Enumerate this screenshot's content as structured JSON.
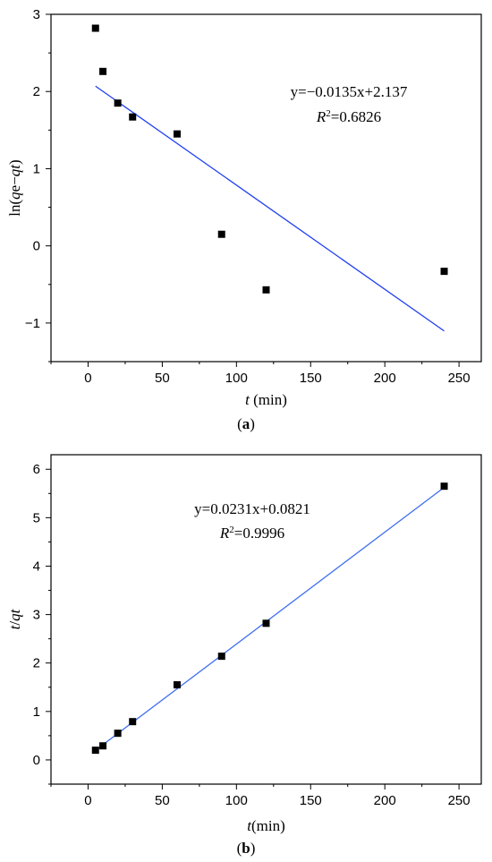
{
  "chart_data": [
    {
      "type": "scatter",
      "panel": "a",
      "xlabel_italic": "t",
      "xlabel_unit": " (min)",
      "ylabel_prefix": "ln(",
      "ylabel_q1": "q",
      "ylabel_e": "e−",
      "ylabel_q2": "qt",
      "ylabel_suffix": ")",
      "xlim": [
        -25,
        265
      ],
      "ylim": [
        -1.5,
        3
      ],
      "xticks": [
        0,
        50,
        100,
        150,
        200,
        250
      ],
      "yticks": [
        -1,
        0,
        1,
        2,
        3
      ],
      "series": [
        {
          "x": [
            5,
            10,
            20,
            30,
            60,
            90,
            120,
            240
          ],
          "y": [
            2.82,
            2.26,
            1.85,
            1.67,
            1.45,
            0.15,
            -0.57,
            -0.33
          ]
        }
      ],
      "fit": {
        "x": [
          5,
          240
        ],
        "slope": -0.0135,
        "intercept": 2.137
      },
      "equation": "y=−0.0135x+2.137",
      "r2_label": "R",
      "r2_sup": "2",
      "r2_value": "=0.6826",
      "caption_letter": "a",
      "marker_color": "#000000",
      "line_color": "#1f3ff0",
      "grid": false
    },
    {
      "type": "scatter",
      "panel": "b",
      "xlabel_italic": "t",
      "xlabel_unit": "(min)",
      "ylabel_prefix": "",
      "ylabel_q1": "t",
      "ylabel_e": "/",
      "ylabel_q2": "qt",
      "ylabel_suffix": "",
      "xlim": [
        -25,
        265
      ],
      "ylim": [
        -0.5,
        6.3
      ],
      "xticks": [
        0,
        50,
        100,
        150,
        200,
        250
      ],
      "yticks": [
        0,
        1,
        2,
        3,
        4,
        5,
        6
      ],
      "series": [
        {
          "x": [
            5,
            10,
            20,
            30,
            60,
            90,
            120,
            240
          ],
          "y": [
            0.2,
            0.29,
            0.55,
            0.79,
            1.55,
            2.14,
            2.82,
            5.65
          ]
        }
      ],
      "fit": {
        "x": [
          5,
          240
        ],
        "slope": 0.0231,
        "intercept": 0.0821
      },
      "equation": "y=0.0231x+0.0821",
      "r2_label": "R",
      "r2_sup": "2",
      "r2_value": "=0.9996",
      "caption_letter": "b",
      "marker_color": "#000000",
      "line_color": "#3f6ff0",
      "grid": false
    }
  ]
}
